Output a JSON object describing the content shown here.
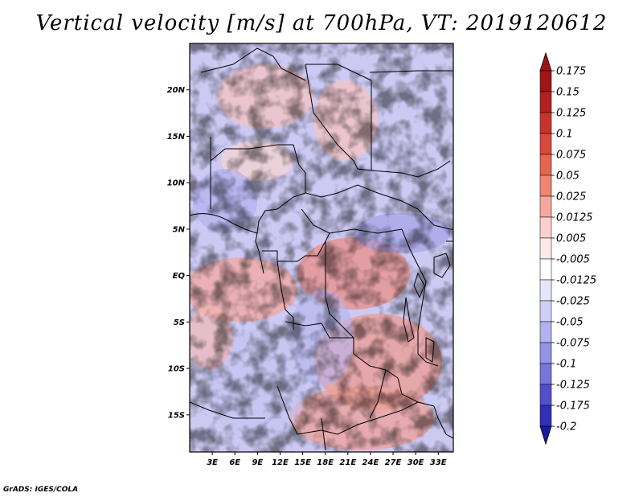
{
  "title": "Vertical velocity [m/s] at 700hPa, VT: 2019120612",
  "credit": "GrADS: IGES/COLA",
  "map": {
    "lat_range": [
      -19,
      25
    ],
    "lon_range": [
      0,
      35
    ],
    "lat_ticks": [
      {
        "value": 20,
        "label": "20N"
      },
      {
        "value": 15,
        "label": "15N"
      },
      {
        "value": 10,
        "label": "10N"
      },
      {
        "value": 5,
        "label": "5N"
      },
      {
        "value": 0,
        "label": "EQ"
      },
      {
        "value": -5,
        "label": "5S"
      },
      {
        "value": -10,
        "label": "10S"
      },
      {
        "value": -15,
        "label": "15S"
      }
    ],
    "lon_ticks": [
      {
        "value": 3,
        "label": "3E"
      },
      {
        "value": 6,
        "label": "6E"
      },
      {
        "value": 9,
        "label": "9E"
      },
      {
        "value": 12,
        "label": "12E"
      },
      {
        "value": 15,
        "label": "15E"
      },
      {
        "value": 18,
        "label": "18E"
      },
      {
        "value": 21,
        "label": "21E"
      },
      {
        "value": 24,
        "label": "24E"
      },
      {
        "value": 27,
        "label": "27E"
      },
      {
        "value": 30,
        "label": "30E"
      },
      {
        "value": 33,
        "label": "33E"
      }
    ]
  },
  "colorbar": {
    "labels": [
      "0.175",
      "0.15",
      "0.125",
      "0.1",
      "0.075",
      "0.05",
      "0.025",
      "0.0125",
      "0.005",
      "-0.005",
      "-0.0125",
      "-0.025",
      "-0.05",
      "-0.075",
      "-0.1",
      "-0.125",
      "-0.175",
      "-0.2"
    ],
    "colors": [
      "#a01418",
      "#b4201f",
      "#c8342d",
      "#d9493c",
      "#e46650",
      "#ee8672",
      "#f5a8a0",
      "#fbcfcc",
      "#fde9e8",
      "#ffffff",
      "#e6e6fb",
      "#cfd0f7",
      "#b2b2f0",
      "#9393e6",
      "#7575dc",
      "#5050cb",
      "#3030b8",
      "#1a1aa0"
    ]
  }
}
